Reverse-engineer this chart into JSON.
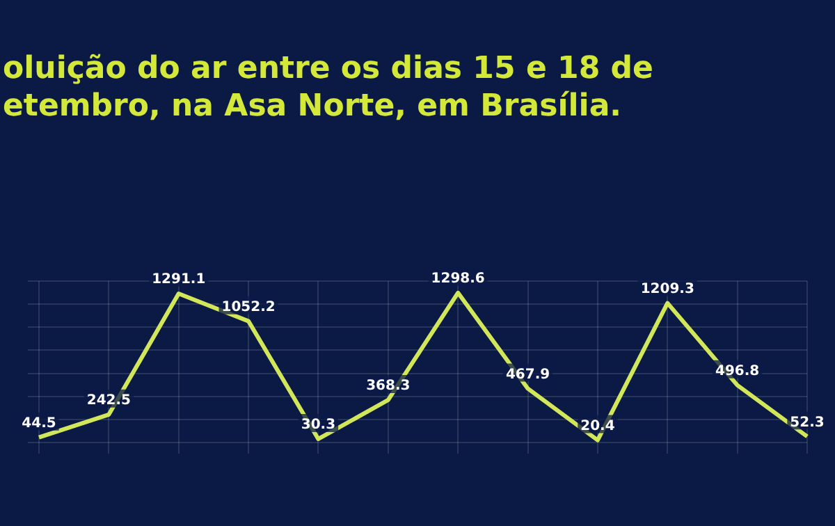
{
  "chart_data": {
    "type": "line",
    "title": "oluição do ar entre os dias 15 e 18 de\netembro, na Asa Norte, em Brasília.",
    "categories": [
      null,
      null,
      null,
      null,
      null,
      null,
      null,
      null,
      null,
      null,
      null,
      null
    ],
    "values": [
      44.5,
      242.5,
      1291.1,
      1052.2,
      30.3,
      368.3,
      1298.6,
      467.9,
      20.4,
      1209.3,
      496.8,
      52.3
    ],
    "color": "#d2e65a",
    "data_labels": true,
    "grid": true,
    "marker": "none",
    "line_style": "solid"
  }
}
